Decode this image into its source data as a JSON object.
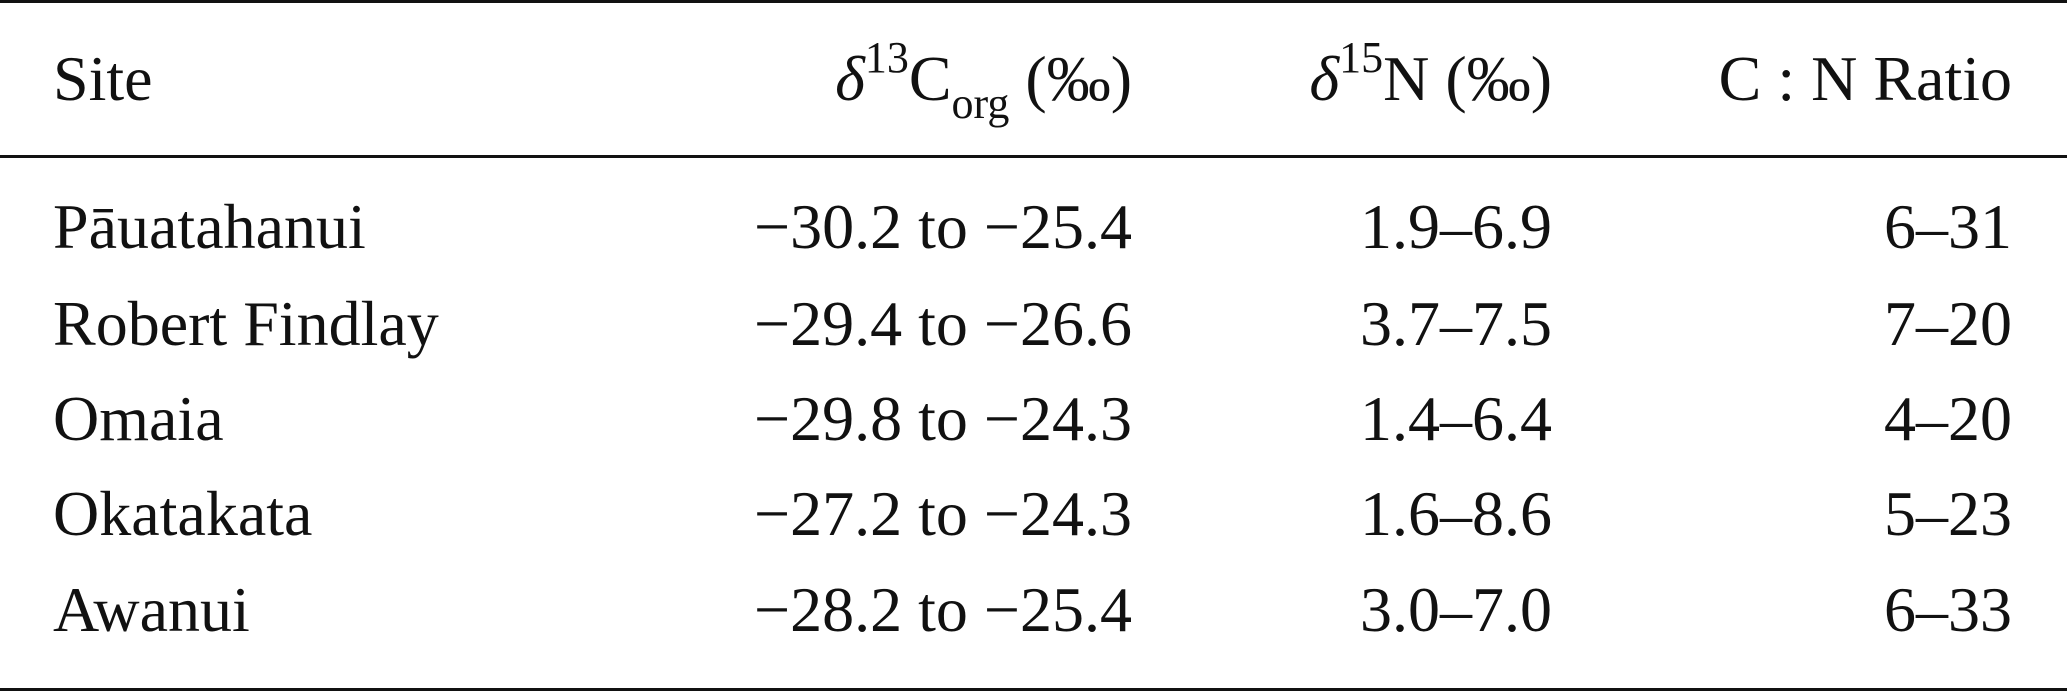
{
  "table": {
    "headers": {
      "site": "Site",
      "c13": {
        "delta": "δ",
        "sup": "13",
        "base": "C",
        "sub": "org",
        "unit": " (‰)"
      },
      "n15": {
        "delta": "δ",
        "sup": "15",
        "base": "N",
        "unit": " (‰)"
      },
      "cn": "C : N Ratio"
    },
    "rows": [
      {
        "site": "Pāuatahanui",
        "c13": "−30.2 to −25.4",
        "n15": "1.9–6.9",
        "cn": "6–31"
      },
      {
        "site": "Robert Findlay",
        "c13": "−29.4 to −26.6",
        "n15": "3.7–7.5",
        "cn": "7–20"
      },
      {
        "site": "Omaia",
        "c13": "−29.8 to −24.3",
        "n15": "1.4–6.4",
        "cn": "4–20"
      },
      {
        "site": "Okatakata",
        "c13": "−27.2 to −24.3",
        "n15": "1.6–8.6",
        "cn": "5–23"
      },
      {
        "site": "Awanui",
        "c13": "−28.2 to −25.4",
        "n15": "3.0–7.0",
        "cn": "6–33"
      }
    ]
  }
}
